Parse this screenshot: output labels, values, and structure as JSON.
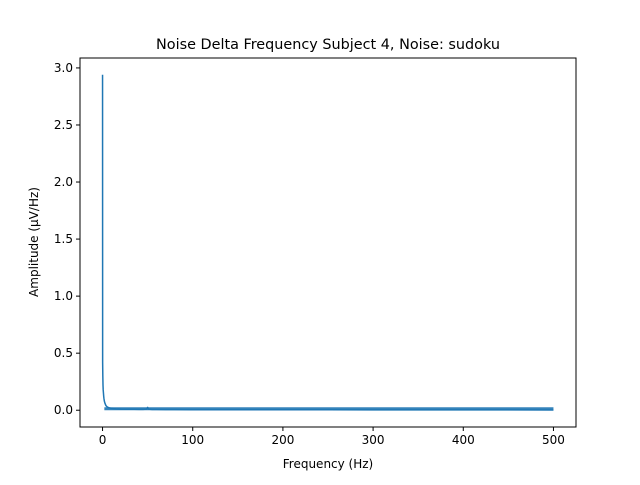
{
  "chart_data": {
    "type": "line",
    "title": "Noise Delta Frequency Subject 4, Noise: sudoku",
    "xlabel": "Frequency (Hz)",
    "ylabel": "Amplitude (μV/Hz)",
    "xlim": [
      -25,
      525
    ],
    "ylim": [
      -0.147,
      3.087
    ],
    "xticks": [
      0,
      100,
      200,
      300,
      400,
      500
    ],
    "xtick_labels": [
      "0",
      "100",
      "200",
      "300",
      "400",
      "500"
    ],
    "yticks": [
      0.0,
      0.5,
      1.0,
      1.5,
      2.0,
      2.5,
      3.0
    ],
    "ytick_labels": [
      "0.0",
      "0.5",
      "1.0",
      "1.5",
      "2.0",
      "2.5",
      "3.0"
    ],
    "grid": false,
    "series": [
      {
        "color": "#1f77b4",
        "x": [
          0,
          0.1,
          0.2,
          0.3,
          0.5,
          0.7,
          1,
          1.3,
          1.6,
          2,
          2.5,
          3,
          3.5,
          4,
          5,
          6,
          7,
          8,
          9,
          10,
          12,
          15,
          18,
          20,
          25,
          30,
          35,
          40,
          45,
          49,
          50,
          51,
          55,
          60,
          70,
          80,
          100,
          150,
          200,
          250,
          300,
          350,
          400,
          450,
          500
        ],
        "y": [
          2.94,
          0.42,
          0.36,
          0.3,
          0.22,
          0.18,
          0.15,
          0.12,
          0.1,
          0.08,
          0.065,
          0.055,
          0.045,
          0.038,
          0.03,
          0.025,
          0.022,
          0.02,
          0.018,
          0.016,
          0.014,
          0.012,
          0.011,
          0.01,
          0.009,
          0.008,
          0.008,
          0.007,
          0.007,
          0.01,
          0.025,
          0.01,
          0.006,
          0.006,
          0.005,
          0.005,
          0.004,
          0.004,
          0.004,
          0.004,
          0.003,
          0.003,
          0.003,
          0.003,
          0.002
        ]
      }
    ]
  }
}
